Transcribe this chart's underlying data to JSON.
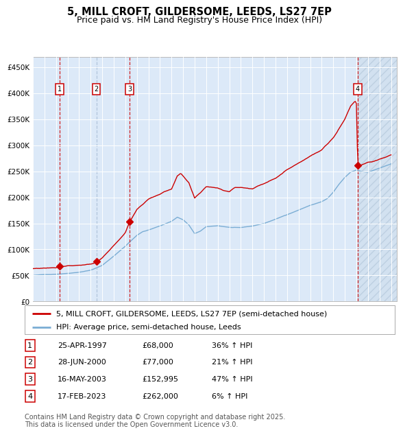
{
  "title": "5, MILL CROFT, GILDERSOME, LEEDS, LS27 7EP",
  "subtitle": "Price paid vs. HM Land Registry's House Price Index (HPI)",
  "ylim": [
    0,
    470000
  ],
  "yticks": [
    0,
    50000,
    100000,
    150000,
    200000,
    250000,
    300000,
    350000,
    400000,
    450000
  ],
  "ytick_labels": [
    "£0",
    "£50K",
    "£100K",
    "£150K",
    "£200K",
    "£250K",
    "£300K",
    "£350K",
    "£400K",
    "£450K"
  ],
  "xlim_start": 1995.0,
  "xlim_end": 2026.5,
  "plot_bg_color": "#dce9f8",
  "red_line_color": "#cc0000",
  "blue_line_color": "#7aadd4",
  "sale_marker_color": "#cc0000",
  "vline_red": "#cc0000",
  "vline_blue": "#aabfd8",
  "legend_line1": "5, MILL CROFT, GILDERSOME, LEEDS, LS27 7EP (semi-detached house)",
  "legend_line2": "HPI: Average price, semi-detached house, Leeds",
  "sales": [
    {
      "num": "1",
      "date": 1997.32,
      "price": 68000,
      "vline": "red"
    },
    {
      "num": "2",
      "date": 2000.49,
      "price": 77000,
      "vline": "blue"
    },
    {
      "num": "3",
      "date": 2003.37,
      "price": 152995,
      "vline": "red"
    },
    {
      "num": "4",
      "date": 2023.12,
      "price": 262000,
      "vline": "red"
    }
  ],
  "table_rows": [
    [
      "1",
      "25-APR-1997",
      "£68,000",
      "36% ↑ HPI"
    ],
    [
      "2",
      "28-JUN-2000",
      "£77,000",
      "21% ↑ HPI"
    ],
    [
      "3",
      "16-MAY-2003",
      "£152,995",
      "47% ↑ HPI"
    ],
    [
      "4",
      "17-FEB-2023",
      "£262,000",
      "6% ↑ HPI"
    ]
  ],
  "footer": "Contains HM Land Registry data © Crown copyright and database right 2025.\nThis data is licensed under the Open Government Licence v3.0.",
  "title_fontsize": 10.5,
  "subtitle_fontsize": 9,
  "tick_fontsize": 7.5,
  "legend_fontsize": 8,
  "table_fontsize": 8,
  "footer_fontsize": 7
}
